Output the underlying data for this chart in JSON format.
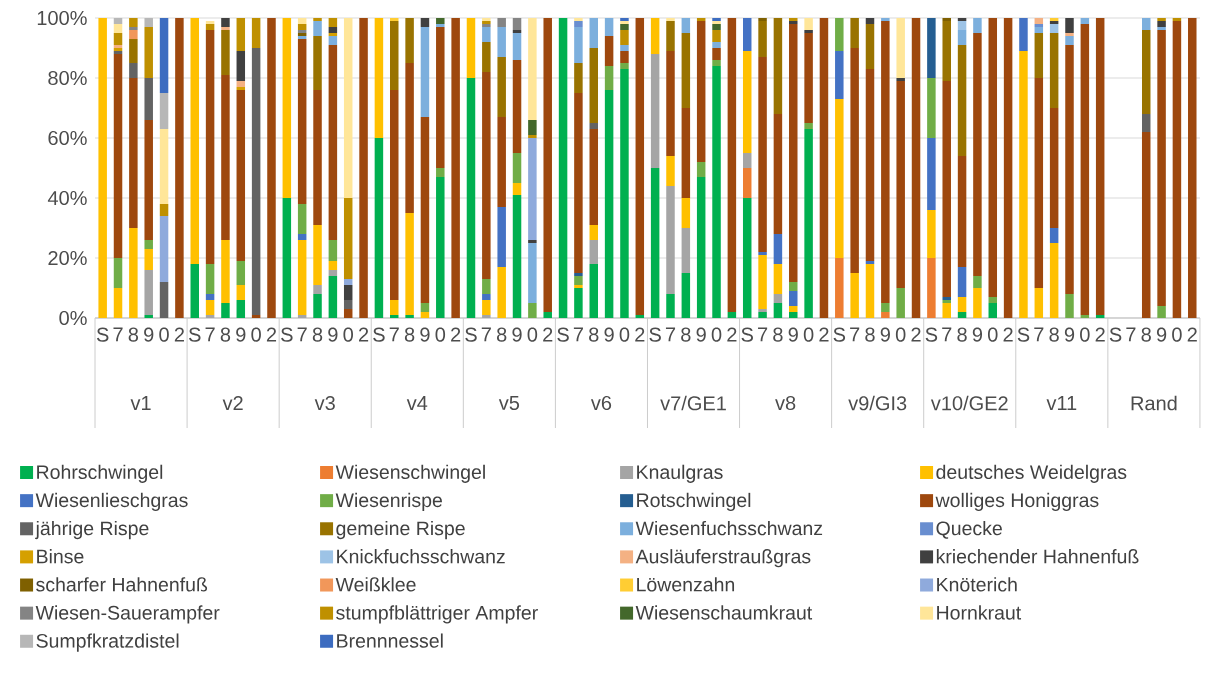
{
  "chart_data": {
    "type": "bar",
    "stacked": true,
    "grid": "y",
    "legend": "bottom",
    "categories": [
      "S",
      "7",
      "8",
      "9",
      "0",
      "2",
      "S",
      "7",
      "8",
      "9",
      "0",
      "2",
      "S",
      "7",
      "8",
      "9",
      "0",
      "2",
      "S",
      "7",
      "8",
      "9",
      "0",
      "2",
      "S",
      "7",
      "8",
      "9",
      "0",
      "2",
      "S",
      "7",
      "8",
      "9",
      "0",
      "2",
      "S",
      "7",
      "8",
      "9",
      "0",
      "2",
      "S",
      "7",
      "8",
      "9",
      "0",
      "2",
      "S",
      "7",
      "8",
      "9",
      "0",
      "2",
      "S",
      "7",
      "8",
      "9",
      "0",
      "2",
      "S",
      "7",
      "8",
      "9",
      "0",
      "2",
      "S",
      "7",
      "8",
      "9",
      "0",
      "2"
    ],
    "annotations": [
      "v1",
      "v2",
      "v3",
      "v4",
      "v5",
      "v6",
      "v7/GE1",
      "v8",
      "v9/GI3",
      "v10/GE2",
      "v11",
      "Rand"
    ],
    "ylim": [
      0,
      100
    ],
    "yticks": [
      {
        "value": 0,
        "label": "0%"
      },
      {
        "value": 20,
        "label": "20%"
      },
      {
        "value": 40,
        "label": "40%"
      },
      {
        "value": 60,
        "label": "60%"
      },
      {
        "value": 80,
        "label": "80%"
      },
      {
        "value": 100,
        "label": "100%"
      }
    ],
    "series": [
      {
        "name": "Rohrschwingel",
        "color": "#00b050",
        "values": [
          0,
          0,
          0,
          1,
          0,
          0,
          18,
          0,
          5,
          6,
          0,
          0,
          40,
          0,
          8,
          14,
          0,
          0,
          60,
          1,
          1,
          0,
          47,
          0,
          80,
          0,
          0,
          41,
          0,
          2,
          100,
          10,
          18,
          76,
          83,
          1,
          50,
          8,
          15,
          47,
          84,
          2,
          40,
          2,
          5,
          2,
          63,
          0,
          0,
          0,
          0,
          0,
          0,
          0,
          0,
          0,
          2,
          0,
          5,
          0,
          0,
          0,
          0,
          0,
          0,
          1,
          null,
          null,
          0,
          0,
          0,
          0
        ]
      },
      {
        "name": "Wiesenschwingel",
        "color": "#ed7d31",
        "values": [
          0,
          0,
          0,
          0,
          0,
          0,
          0,
          0,
          0,
          0,
          0,
          0,
          0,
          0,
          0,
          0,
          0,
          0,
          0,
          0,
          0,
          0,
          0,
          0,
          0,
          0,
          0,
          0,
          0,
          0,
          0,
          0,
          0,
          0,
          0,
          0,
          0,
          0,
          0,
          0,
          0,
          0,
          10,
          0,
          0,
          0,
          0,
          0,
          20,
          0,
          0,
          2,
          0,
          0,
          20,
          0,
          0,
          0,
          0,
          0,
          0,
          0,
          0,
          0,
          0,
          0,
          null,
          null,
          0,
          0,
          0,
          0
        ]
      },
      {
        "name": "Knaulgras",
        "color": "#a5a5a5",
        "values": [
          0,
          0,
          0,
          15,
          0,
          0,
          0,
          1,
          0,
          0,
          0,
          0,
          0,
          1,
          3,
          2,
          0,
          0,
          0,
          0,
          0,
          0,
          0,
          0,
          0,
          1,
          0,
          0,
          0,
          0,
          0,
          0,
          8,
          0,
          0,
          0,
          38,
          36,
          15,
          0,
          0,
          0,
          5,
          1,
          3,
          0,
          0,
          0,
          0,
          0,
          0,
          0,
          0,
          0,
          0,
          0,
          0,
          0,
          0,
          0,
          0,
          0,
          0,
          0,
          0,
          0,
          null,
          null,
          0,
          0,
          0,
          0
        ]
      },
      {
        "name": "deutsches Weidelgras",
        "color": "#ffc000",
        "values": [
          100,
          10,
          30,
          7,
          0,
          0,
          82,
          5,
          21,
          5,
          0,
          0,
          60,
          25,
          20,
          3,
          0,
          0,
          40,
          5,
          34,
          2,
          0,
          0,
          20,
          5,
          17,
          4,
          0,
          0,
          0,
          1,
          5,
          0,
          0,
          0,
          12,
          10,
          10,
          0,
          0,
          0,
          34,
          18,
          10,
          2,
          0,
          0,
          53,
          15,
          18,
          0,
          0,
          0,
          16,
          5,
          5,
          10,
          0,
          0,
          89,
          10,
          25,
          0,
          0,
          0,
          null,
          null,
          0,
          0,
          0,
          0
        ]
      },
      {
        "name": "Wiesenlieschgras",
        "color": "#4472c4",
        "values": [
          0,
          0,
          0,
          0,
          0,
          0,
          0,
          2,
          0,
          0,
          0,
          0,
          0,
          2,
          0,
          0,
          0,
          0,
          0,
          0,
          0,
          0,
          0,
          0,
          0,
          2,
          20,
          0,
          0,
          0,
          0,
          0,
          0,
          0,
          0,
          0,
          0,
          0,
          0,
          0,
          0,
          0,
          11,
          1,
          10,
          5,
          0,
          0,
          16,
          0,
          1,
          0,
          0,
          0,
          24,
          0,
          10,
          0,
          0,
          0,
          11,
          0,
          5,
          0,
          0,
          0,
          null,
          null,
          0,
          0,
          0,
          0
        ]
      },
      {
        "name": "Wiesenrispe",
        "color": "#70ad47",
        "values": [
          0,
          10,
          0,
          3,
          0,
          0,
          0,
          10,
          0,
          8,
          0,
          0,
          0,
          10,
          0,
          7,
          0,
          0,
          0,
          0,
          0,
          3,
          3,
          0,
          0,
          5,
          0,
          10,
          5,
          0,
          0,
          3,
          0,
          8,
          2,
          0,
          0,
          0,
          0,
          5,
          2,
          0,
          0,
          0,
          0,
          3,
          2,
          0,
          11,
          0,
          0,
          3,
          10,
          0,
          20,
          1,
          0,
          4,
          2,
          0,
          0,
          0,
          0,
          8,
          1,
          0,
          null,
          null,
          0,
          4,
          0,
          0
        ]
      },
      {
        "name": "Rotschwingel",
        "color": "#255e91",
        "values": [
          0,
          0,
          0,
          0,
          0,
          0,
          0,
          0,
          0,
          0,
          0,
          0,
          0,
          0,
          0,
          0,
          0,
          0,
          0,
          0,
          0,
          0,
          0,
          0,
          0,
          0,
          0,
          0,
          0,
          0,
          0,
          1,
          0,
          0,
          0,
          0,
          0,
          0,
          0,
          0,
          0,
          0,
          0,
          0,
          0,
          0,
          0,
          0,
          0,
          0,
          0,
          0,
          0,
          0,
          20,
          1,
          0,
          0,
          0,
          0,
          0,
          0,
          0,
          0,
          0,
          0,
          null,
          null,
          0,
          0,
          0,
          0
        ]
      },
      {
        "name": "wolliges Honiggras",
        "color": "#9e480e",
        "values": [
          0,
          68,
          50,
          40,
          0,
          100,
          0,
          78,
          55,
          57,
          1,
          100,
          0,
          55,
          45,
          65,
          3,
          100,
          0,
          70,
          50,
          62,
          47,
          100,
          0,
          69,
          30,
          31,
          0,
          98,
          0,
          60,
          32,
          10,
          4,
          99,
          0,
          35,
          30,
          47,
          4,
          98,
          0,
          65,
          40,
          86,
          30,
          100,
          0,
          75,
          64,
          94,
          69,
          100,
          0,
          72,
          37,
          81,
          93,
          100,
          0,
          70,
          40,
          83,
          97,
          99,
          null,
          null,
          62,
          92,
          99,
          100
        ]
      },
      {
        "name": "jährige Rispe",
        "color": "#636363",
        "values": [
          0,
          1,
          5,
          14,
          12,
          0,
          0,
          0,
          0,
          0,
          89,
          0,
          0,
          0,
          0,
          0,
          3,
          0,
          0,
          0,
          0,
          0,
          0,
          0,
          0,
          0,
          0,
          0,
          0,
          0,
          0,
          0,
          2,
          0,
          0,
          0,
          0,
          0,
          0,
          0,
          0,
          0,
          0,
          0,
          0,
          0,
          0,
          0,
          0,
          0,
          0,
          0,
          0,
          0,
          0,
          0,
          0,
          0,
          0,
          0,
          0,
          0,
          0,
          0,
          0,
          0,
          null,
          null,
          6,
          0,
          0,
          0
        ]
      },
      {
        "name": "gemeine Rispe",
        "color": "#997300",
        "values": [
          0,
          0,
          8,
          0,
          0,
          0,
          0,
          0,
          15,
          0,
          0,
          0,
          0,
          0,
          18,
          0,
          0,
          0,
          0,
          23,
          15,
          0,
          0,
          0,
          0,
          10,
          20,
          0,
          0,
          0,
          0,
          10,
          25,
          0,
          0,
          0,
          0,
          10,
          25,
          0,
          0,
          0,
          0,
          12,
          32,
          0,
          0,
          0,
          0,
          10,
          15,
          0,
          0,
          0,
          0,
          20,
          37,
          0,
          0,
          0,
          0,
          15,
          25,
          0,
          0,
          0,
          null,
          null,
          28,
          0,
          0,
          0
        ]
      },
      {
        "name": "Wiesenfuchsschwanz",
        "color": "#7cafdd",
        "values": [
          0,
          0,
          0,
          0,
          0,
          0,
          0,
          0,
          0,
          0,
          0,
          0,
          0,
          1,
          5,
          3,
          0,
          0,
          0,
          0,
          0,
          30,
          1,
          0,
          0,
          5,
          10,
          9,
          20,
          0,
          0,
          12,
          10,
          6,
          2,
          0,
          0,
          0,
          5,
          0,
          2,
          0,
          0,
          0,
          0,
          0,
          0,
          0,
          0,
          0,
          0,
          1,
          0,
          0,
          0,
          0,
          5,
          5,
          0,
          0,
          0,
          2,
          0,
          3,
          2,
          0,
          null,
          null,
          4,
          1,
          0,
          0
        ]
      },
      {
        "name": "Quecke",
        "color": "#698ed0",
        "values": [
          0,
          0,
          0,
          0,
          0,
          0,
          0,
          0,
          0,
          0,
          0,
          0,
          0,
          0,
          0,
          0,
          0,
          0,
          0,
          0,
          0,
          0,
          0,
          0,
          0,
          0,
          0,
          0,
          0,
          0,
          0,
          2,
          0,
          0,
          0,
          0,
          0,
          0,
          0,
          0,
          0,
          0,
          0,
          0,
          0,
          0,
          0,
          0,
          0,
          0,
          0,
          0,
          0,
          0,
          0,
          0,
          0,
          0,
          0,
          0,
          0,
          1,
          0,
          0,
          0,
          0,
          null,
          null,
          0,
          0,
          0,
          0
        ]
      },
      {
        "name": "Binse",
        "color": "#d5a000",
        "values": [
          0,
          1,
          0,
          0,
          0,
          0,
          0,
          0,
          0,
          1,
          0,
          0,
          0,
          0,
          0,
          1,
          0,
          0,
          0,
          0,
          0,
          0,
          0,
          0,
          0,
          0,
          0,
          0,
          0,
          0,
          0,
          0,
          0,
          0,
          0,
          0,
          0,
          0,
          0,
          0,
          0,
          0,
          0,
          0,
          0,
          0,
          0,
          0,
          0,
          0,
          0,
          0,
          0,
          0,
          0,
          0,
          0,
          0,
          0,
          0,
          0,
          0,
          0,
          0,
          0,
          0,
          null,
          null,
          0,
          0,
          0,
          0
        ]
      },
      {
        "name": "Knickfuchsschwanz",
        "color": "#9dc3e6",
        "values": [
          0,
          0,
          0,
          0,
          0,
          0,
          0,
          0,
          0,
          0,
          0,
          0,
          0,
          0,
          0,
          0,
          0,
          0,
          0,
          0,
          0,
          0,
          0,
          0,
          0,
          0,
          0,
          0,
          0,
          0,
          0,
          0,
          0,
          0,
          0,
          0,
          0,
          0,
          0,
          0,
          0,
          0,
          0,
          0,
          0,
          0,
          0,
          0,
          0,
          0,
          0,
          0,
          0,
          0,
          0,
          0,
          3,
          0,
          0,
          0,
          0,
          0,
          3,
          0,
          0,
          0,
          null,
          null,
          0,
          0,
          0,
          0
        ]
      },
      {
        "name": "Ausläuferstraußgras",
        "color": "#f4b183",
        "values": [
          0,
          1,
          0,
          0,
          0,
          0,
          0,
          0,
          1,
          2,
          0,
          0,
          0,
          0,
          0,
          0,
          0,
          0,
          0,
          0,
          0,
          0,
          0,
          0,
          0,
          0,
          0,
          0,
          0,
          0,
          0,
          0,
          0,
          0,
          0,
          0,
          0,
          0,
          0,
          0,
          0,
          0,
          0,
          0,
          0,
          0,
          0,
          0,
          0,
          0,
          0,
          0,
          0,
          0,
          0,
          0,
          0,
          0,
          0,
          0,
          0,
          2,
          0,
          1,
          0,
          0,
          null,
          null,
          0,
          0,
          0,
          0
        ]
      },
      {
        "name": "kriechender Hahnenfuß",
        "color": "#404040",
        "values": [
          0,
          0,
          0,
          0,
          0,
          0,
          0,
          0,
          3,
          10,
          0,
          0,
          0,
          0,
          0,
          2,
          5,
          0,
          0,
          0,
          0,
          3,
          0,
          0,
          0,
          0,
          0,
          1,
          1,
          0,
          0,
          0,
          0,
          0,
          0,
          0,
          0,
          0,
          0,
          0,
          0,
          0,
          0,
          0,
          0,
          1,
          1,
          0,
          0,
          0,
          2,
          0,
          1,
          0,
          0,
          0,
          1,
          0,
          0,
          0,
          0,
          0,
          1,
          5,
          0,
          0,
          null,
          null,
          0,
          2,
          0,
          0
        ]
      },
      {
        "name": "scharfer Hahnenfuß",
        "color": "#7f6000",
        "values": [
          0,
          0,
          0,
          0,
          0,
          0,
          0,
          0,
          0,
          0,
          0,
          0,
          0,
          1,
          0,
          0,
          0,
          0,
          0,
          0,
          0,
          0,
          0,
          0,
          0,
          0,
          0,
          0,
          0,
          0,
          0,
          0,
          0,
          0,
          0,
          0,
          0,
          0,
          0,
          0,
          0,
          0,
          0,
          1,
          0,
          0,
          0,
          0,
          0,
          0,
          0,
          0,
          0,
          0,
          0,
          1,
          0,
          0,
          0,
          0,
          0,
          0,
          0,
          0,
          0,
          0,
          null,
          null,
          0,
          0,
          0,
          0
        ]
      },
      {
        "name": "Weißklee",
        "color": "#f1975a",
        "values": [
          0,
          0,
          3,
          0,
          0,
          0,
          0,
          0,
          0,
          0,
          0,
          0,
          0,
          0,
          0,
          0,
          0,
          0,
          0,
          0,
          0,
          0,
          0,
          0,
          0,
          0,
          0,
          0,
          0,
          0,
          0,
          0,
          0,
          0,
          0,
          0,
          0,
          0,
          0,
          0,
          0,
          0,
          0,
          0,
          0,
          0,
          0,
          0,
          0,
          0,
          0,
          0,
          0,
          0,
          0,
          0,
          0,
          0,
          0,
          0,
          0,
          0,
          0,
          0,
          0,
          0,
          null,
          null,
          0,
          0,
          0,
          0
        ]
      },
      {
        "name": "Löwenzahn",
        "color": "#ffcd33",
        "values": [
          0,
          0,
          0,
          0,
          0,
          0,
          0,
          0,
          0,
          0,
          0,
          0,
          0,
          0,
          0,
          0,
          0,
          0,
          0,
          1,
          0,
          0,
          0,
          0,
          0,
          0,
          0,
          0,
          0,
          0,
          0,
          0,
          0,
          0,
          0,
          0,
          0,
          0,
          0,
          0,
          0,
          0,
          0,
          0,
          0,
          0,
          0,
          0,
          0,
          0,
          0,
          0,
          0,
          0,
          0,
          0,
          0,
          0,
          0,
          0,
          0,
          0,
          1,
          0,
          0,
          0,
          null,
          null,
          0,
          0,
          0,
          0
        ]
      },
      {
        "name": "Knöterich",
        "color": "#8faadc",
        "values": [
          0,
          0,
          0,
          0,
          22,
          0,
          0,
          0,
          0,
          0,
          0,
          0,
          0,
          0,
          0,
          0,
          2,
          0,
          0,
          0,
          0,
          0,
          0,
          0,
          0,
          0,
          0,
          0,
          34,
          0,
          0,
          0,
          0,
          0,
          0,
          0,
          0,
          0,
          0,
          0,
          0,
          0,
          0,
          0,
          0,
          0,
          0,
          0,
          0,
          0,
          0,
          0,
          0,
          0,
          0,
          0,
          0,
          0,
          0,
          0,
          0,
          0,
          0,
          0,
          0,
          0,
          null,
          null,
          0,
          0,
          0,
          0
        ]
      },
      {
        "name": "Wiesen-Sauerampfer",
        "color": "#848484",
        "values": [
          0,
          0,
          1,
          0,
          0,
          0,
          0,
          0,
          0,
          0,
          0,
          0,
          0,
          1,
          0,
          0,
          0,
          0,
          0,
          0,
          0,
          0,
          0,
          0,
          0,
          1,
          3,
          4,
          0,
          0,
          0,
          0,
          0,
          0,
          0,
          0,
          0,
          0,
          0,
          0,
          0,
          0,
          0,
          0,
          0,
          0,
          0,
          0,
          0,
          0,
          0,
          0,
          0,
          0,
          0,
          0,
          0,
          0,
          0,
          0,
          0,
          0,
          0,
          0,
          0,
          0,
          null,
          null,
          0,
          0,
          0,
          0
        ]
      },
      {
        "name": "stumpfblättriger Ampfer",
        "color": "#bf9000",
        "values": [
          0,
          4,
          3,
          17,
          4,
          0,
          0,
          2,
          0,
          11,
          10,
          0,
          0,
          2,
          1,
          3,
          27,
          0,
          0,
          0,
          0,
          0,
          0,
          0,
          0,
          1,
          0,
          0,
          1,
          0,
          0,
          0,
          0,
          0,
          5,
          0,
          0,
          0,
          0,
          1,
          4,
          0,
          0,
          0,
          0,
          1,
          0,
          0,
          0,
          0,
          0,
          0,
          0,
          0,
          0,
          0,
          0,
          0,
          0,
          0,
          0,
          0,
          0,
          0,
          0,
          0,
          null,
          null,
          0,
          1,
          1,
          0
        ]
      },
      {
        "name": "Wiesenschaumkraut",
        "color": "#43682b",
        "values": [
          0,
          0,
          0,
          0,
          0,
          0,
          0,
          0,
          0,
          0,
          0,
          0,
          0,
          0,
          0,
          0,
          0,
          0,
          0,
          0,
          0,
          0,
          2,
          0,
          0,
          0,
          0,
          0,
          5,
          0,
          0,
          0,
          0,
          0,
          2,
          0,
          0,
          0,
          0,
          0,
          2,
          0,
          0,
          0,
          0,
          0,
          0,
          0,
          0,
          0,
          0,
          0,
          0,
          0,
          0,
          0,
          0,
          0,
          0,
          0,
          0,
          0,
          0,
          0,
          0,
          0,
          null,
          null,
          0,
          0,
          0,
          0
        ]
      },
      {
        "name": "Hornkraut",
        "color": "#ffe699",
        "values": [
          0,
          3,
          0,
          0,
          25,
          0,
          0,
          1,
          0,
          0,
          0,
          0,
          0,
          2,
          0,
          0,
          60,
          0,
          0,
          0,
          0,
          0,
          0,
          0,
          0,
          1,
          0,
          0,
          34,
          0,
          0,
          1,
          0,
          0,
          1,
          0,
          0,
          1,
          0,
          0,
          1,
          0,
          0,
          0,
          0,
          0,
          4,
          0,
          0,
          0,
          0,
          0,
          20,
          0,
          0,
          0,
          0,
          0,
          0,
          0,
          0,
          0,
          0,
          0,
          0,
          0,
          null,
          null,
          0,
          0,
          0,
          0
        ]
      },
      {
        "name": "Sumpfkratzdistel",
        "color": "#b7b7b7",
        "values": [
          0,
          2,
          0,
          3,
          12,
          0,
          0,
          0,
          0,
          0,
          0,
          0,
          0,
          0,
          0,
          0,
          0,
          0,
          0,
          0,
          0,
          0,
          0,
          0,
          0,
          0,
          0,
          0,
          0,
          0,
          0,
          0,
          0,
          0,
          0,
          0,
          0,
          0,
          0,
          0,
          0,
          0,
          0,
          0,
          0,
          0,
          0,
          0,
          0,
          0,
          0,
          0,
          0,
          0,
          0,
          0,
          0,
          0,
          0,
          0,
          0,
          0,
          0,
          0,
          0,
          0,
          null,
          null,
          0,
          0,
          0,
          0
        ]
      },
      {
        "name": "Brennnessel",
        "color": "#3c6cc0",
        "values": [
          0,
          0,
          0,
          0,
          25,
          0,
          0,
          0,
          0,
          0,
          0,
          0,
          0,
          0,
          0,
          0,
          0,
          0,
          0,
          0,
          0,
          0,
          0,
          0,
          0,
          0,
          0,
          0,
          0,
          0,
          0,
          0,
          0,
          0,
          1,
          0,
          0,
          0,
          0,
          0,
          1,
          0,
          0,
          0,
          0,
          0,
          0,
          0,
          0,
          0,
          0,
          0,
          0,
          0,
          0,
          0,
          0,
          0,
          0,
          0,
          0,
          0,
          0,
          0,
          0,
          0,
          null,
          null,
          0,
          0,
          0,
          0
        ]
      }
    ]
  }
}
